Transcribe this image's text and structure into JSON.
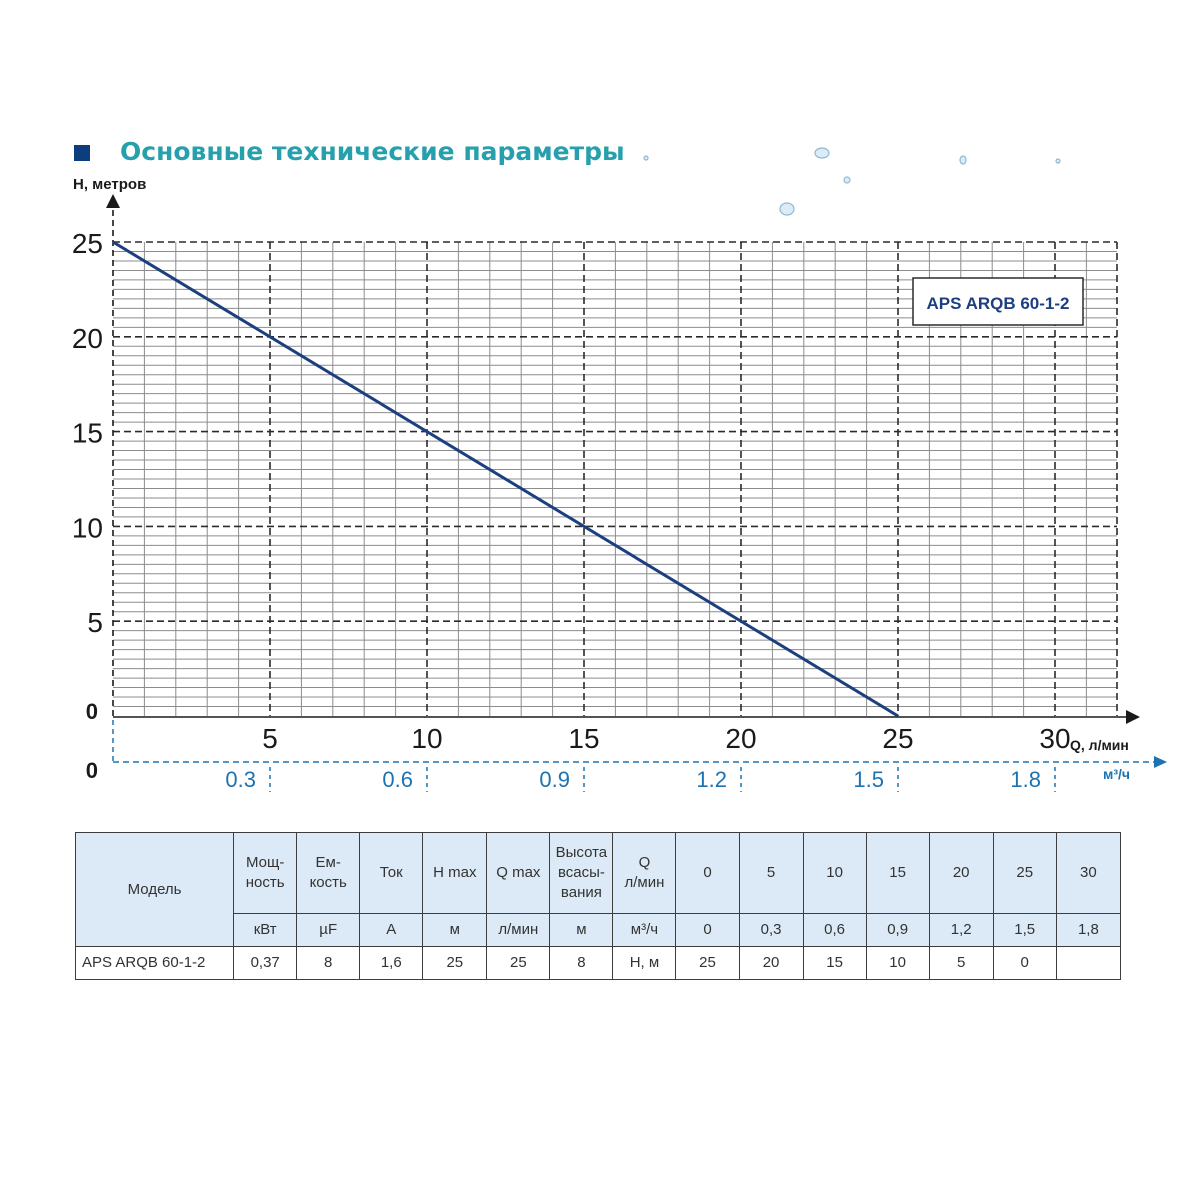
{
  "title": "Основные технические параметры",
  "chart_data": {
    "type": "line",
    "ylabel": "H, метров",
    "xlabel": "Q, л/мин",
    "x2label": "м³/ч",
    "xlim": [
      0,
      32
    ],
    "ylim": [
      0,
      25
    ],
    "x_ticks": [
      5,
      10,
      15,
      20,
      25,
      30
    ],
    "y_ticks": [
      0,
      5,
      10,
      15,
      20,
      25
    ],
    "x2_zero_label": "0",
    "x2_ticks": [
      {
        "at": 5,
        "label": "0.3"
      },
      {
        "at": 10,
        "label": "0.6"
      },
      {
        "at": 15,
        "label": "0.9"
      },
      {
        "at": 20,
        "label": "1.2"
      },
      {
        "at": 25,
        "label": "1.5"
      },
      {
        "at": 30,
        "label": "1.8"
      }
    ],
    "grid": true,
    "series": [
      {
        "name": "APS ARQB 60-1-2",
        "color": "#1d3f80",
        "x": [
          0,
          25
        ],
        "y": [
          25,
          0
        ]
      }
    ],
    "legend_position": "top-right"
  },
  "table": {
    "header": [
      "Модель",
      "Мощ-\nность",
      "Ем-\nкость",
      "Ток",
      "H max",
      "Q max",
      "Высота\nвсасы-\nвания",
      "Q\nл/мин",
      "0",
      "5",
      "10",
      "15",
      "20",
      "25",
      "30"
    ],
    "units": [
      "кВт",
      "µF",
      "А",
      "м",
      "л/мин",
      "м",
      "м³/ч",
      "0",
      "0,3",
      "0,6",
      "0,9",
      "1,2",
      "1,5",
      "1,8"
    ],
    "row": [
      "APS ARQB 60-1-2",
      "0,37",
      "8",
      "1,6",
      "25",
      "25",
      "8",
      "H, м",
      "25",
      "20",
      "15",
      "10",
      "5",
      "0",
      ""
    ]
  },
  "colors": {
    "title": "#27a0ad",
    "title_square": "#0c3d7c",
    "line": "#1d3f80",
    "secondary_axis": "#1d73b0",
    "table_shade": "#dbeaf6"
  }
}
